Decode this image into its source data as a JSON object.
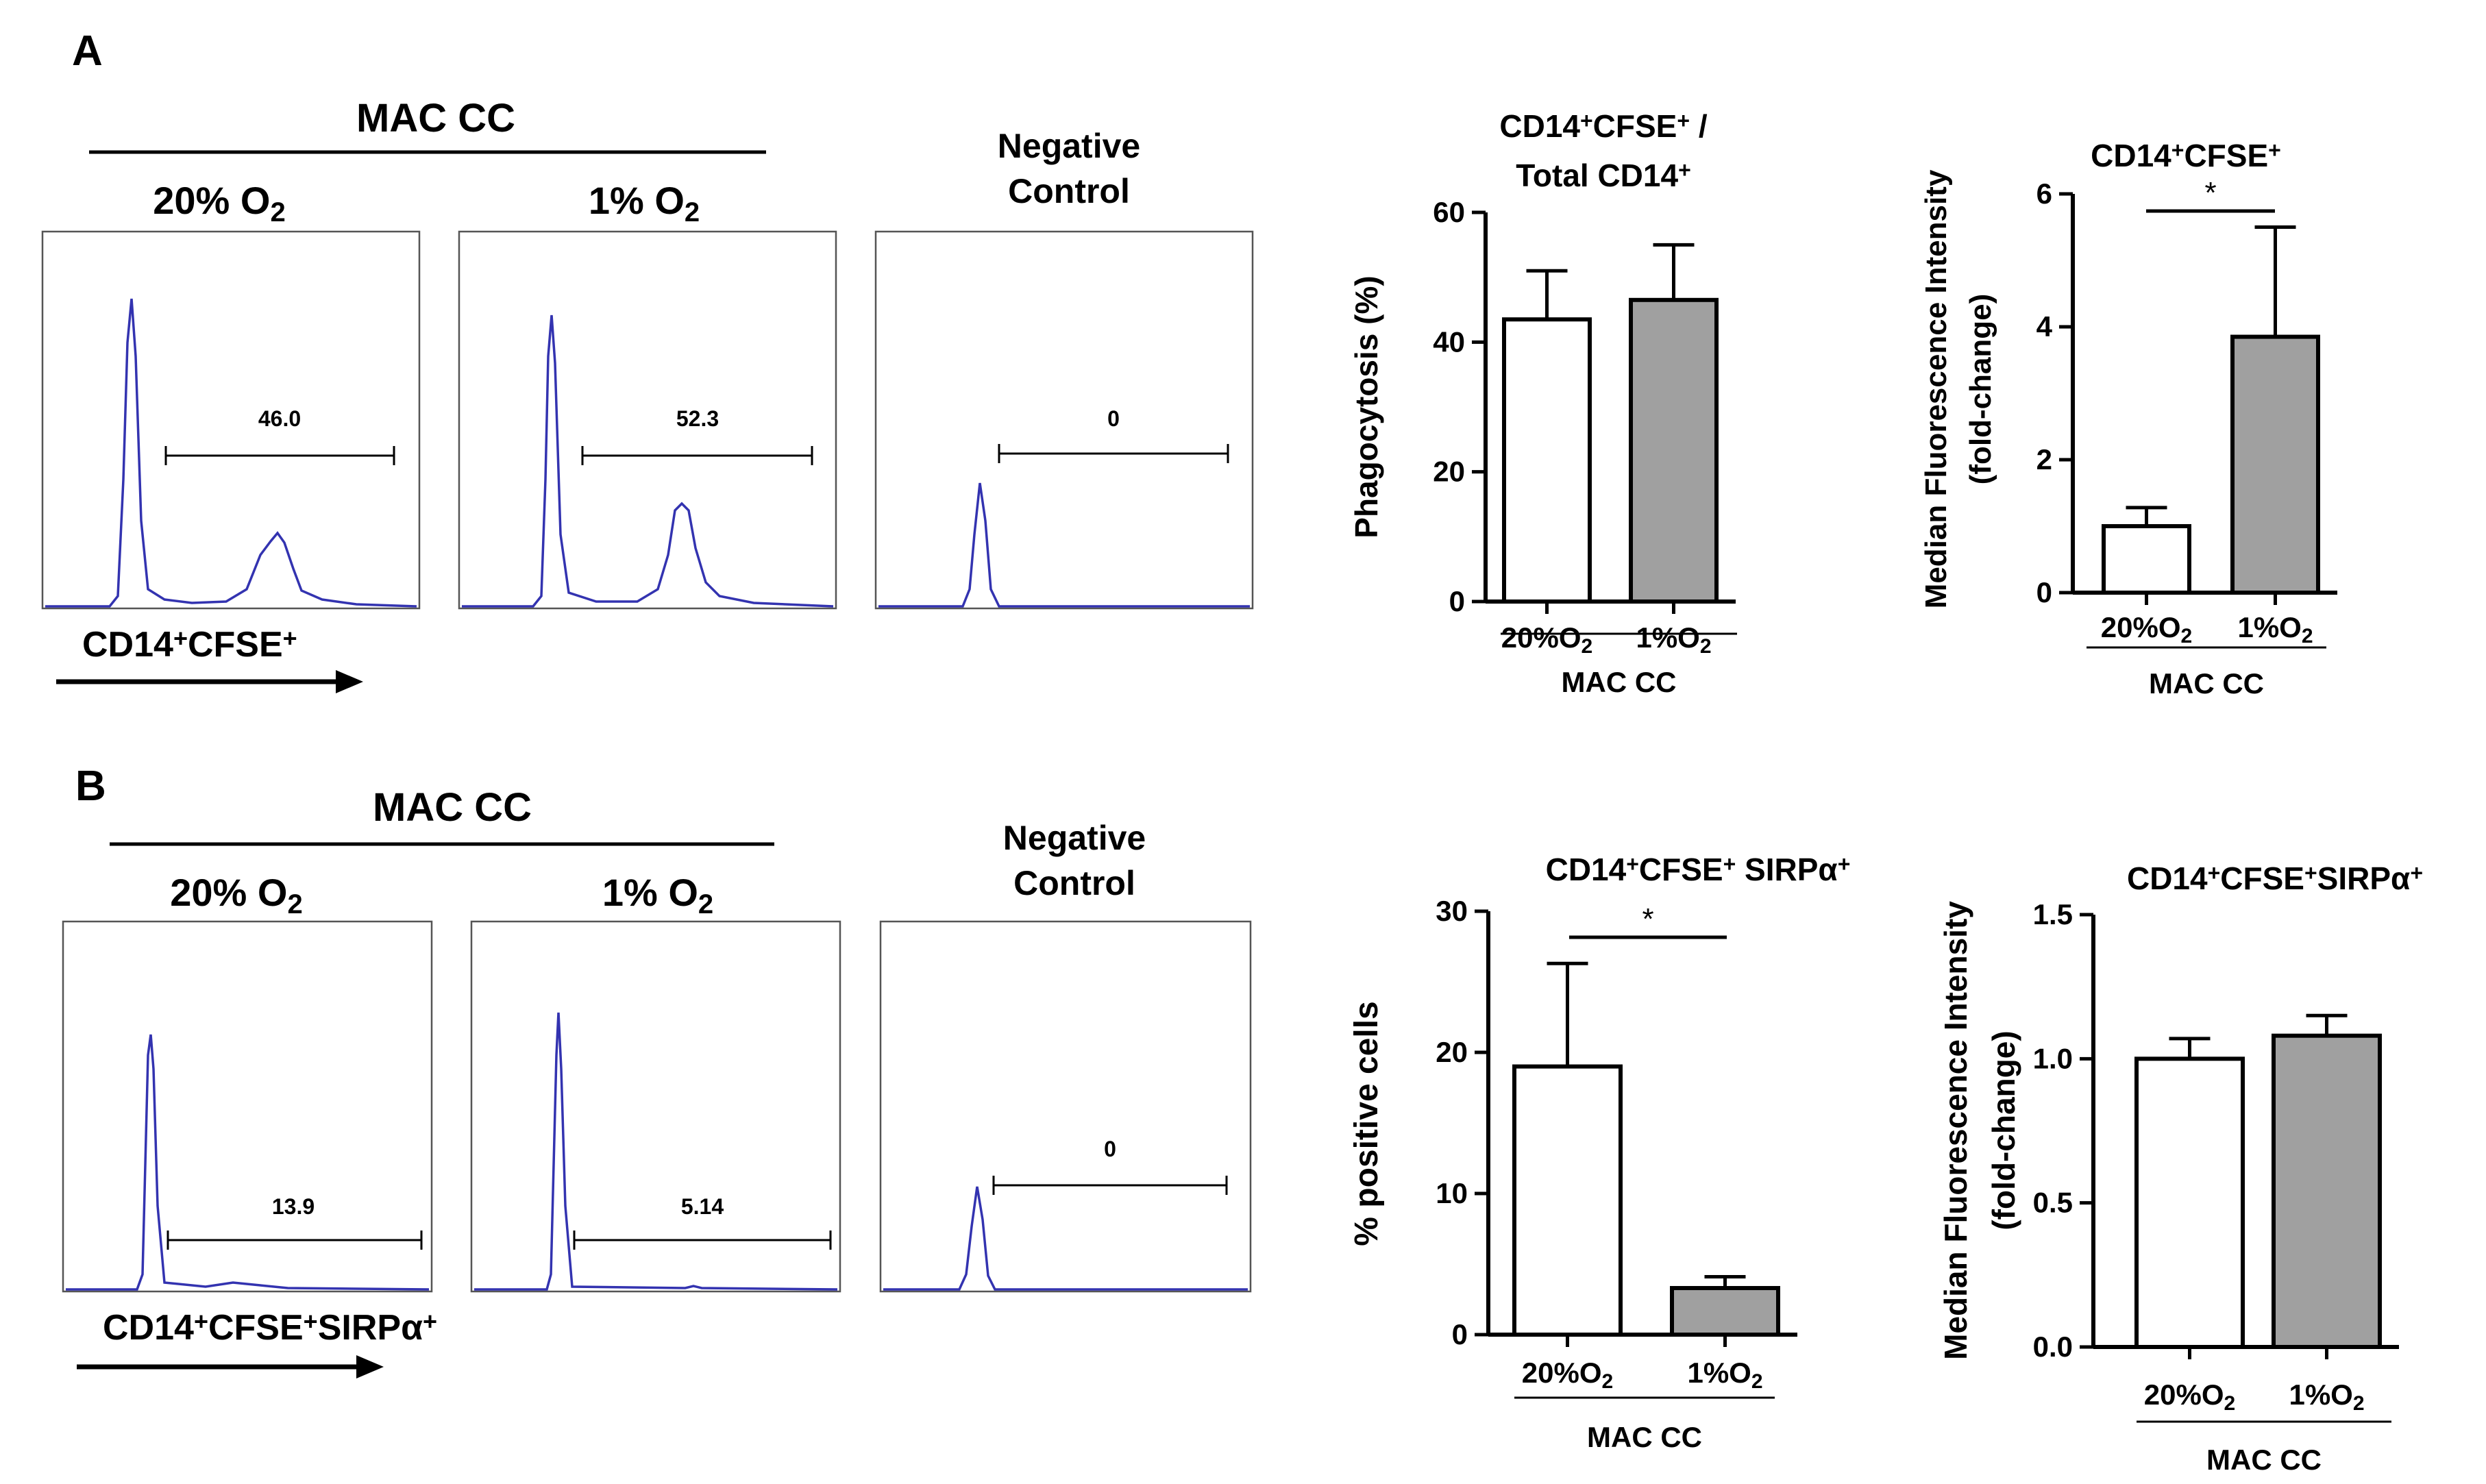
{
  "panels": {
    "A": {
      "label": "A",
      "group_label": "MAC CC",
      "conditions": [
        {
          "base": "20% O",
          "sub": "2"
        },
        {
          "base": "1% O",
          "sub": "2"
        }
      ],
      "negative_control": [
        "Negative",
        "Control"
      ],
      "gate_values": [
        "46.0",
        "52.3",
        "0"
      ],
      "axis_label": {
        "base": "CD14",
        "sup1": "+",
        "mid": "CFSE",
        "sup2": "+"
      }
    },
    "B": {
      "label": "B",
      "group_label": "MAC CC",
      "conditions": [
        {
          "base": "20% O",
          "sub": "2"
        },
        {
          "base": "1% O",
          "sub": "2"
        }
      ],
      "negative_control": [
        "Negative",
        "Control"
      ],
      "gate_values": [
        "13.9",
        "5.14",
        "0"
      ],
      "axis_label": {
        "base": "CD14",
        "sup1": "+",
        "mid": "CFSE",
        "sup2": "+",
        "end": "SIRPα",
        "sup3": "+"
      }
    }
  },
  "chart_data": [
    {
      "id": "A-phago",
      "type": "bar",
      "title_line1": {
        "base": "CD14",
        "sup1": "+",
        "mid": "CFSE",
        "sup2": "+",
        "end": " /"
      },
      "title_line2": {
        "base": "Total CD14",
        "sup1": "+"
      },
      "ylabel": "Phagocytosis (%)",
      "ylim": [
        0,
        60
      ],
      "yticks": [
        "0",
        "20",
        "40",
        "60"
      ],
      "categories": [
        {
          "base": "20%O",
          "sub": "2"
        },
        {
          "base": "1%O",
          "sub": "2"
        }
      ],
      "values": [
        43.5,
        46.5
      ],
      "errors": [
        7.5,
        8.5
      ],
      "colors": [
        "#ffffff",
        "#a0a0a0"
      ],
      "group_label": "MAC CC",
      "significance": ""
    },
    {
      "id": "A-mfi",
      "type": "bar",
      "title_line1": {
        "base": "CD14",
        "sup1": "+",
        "mid": "CFSE",
        "sup2": "+",
        "end": ""
      },
      "ylabel_line1": "Median Fluorescence Intensity",
      "ylabel_line2": "(fold-change)",
      "ylim": [
        0,
        6
      ],
      "yticks": [
        "0",
        "2",
        "4",
        "6"
      ],
      "categories": [
        {
          "base": "20%O",
          "sub": "2"
        },
        {
          "base": "1%O",
          "sub": "2"
        }
      ],
      "values": [
        1.0,
        3.85
      ],
      "errors": [
        0.28,
        1.65
      ],
      "colors": [
        "#ffffff",
        "#a0a0a0"
      ],
      "group_label": "MAC CC",
      "significance": "*"
    },
    {
      "id": "B-pos",
      "type": "bar",
      "title_line1": {
        "base": "CD14",
        "sup1": "+",
        "mid": "CFSE",
        "sup2": "+",
        "end": " SIRPα",
        "sup3": "+"
      },
      "ylabel": "% positive cells",
      "ylim": [
        0,
        30
      ],
      "yticks": [
        "0",
        "10",
        "20",
        "30"
      ],
      "categories": [
        {
          "base": "20%O",
          "sub": "2"
        },
        {
          "base": "1%O",
          "sub": "2"
        }
      ],
      "values": [
        19.0,
        3.3
      ],
      "errors": [
        7.3,
        0.8
      ],
      "colors": [
        "#ffffff",
        "#a0a0a0"
      ],
      "group_label": "MAC CC",
      "significance": "*"
    },
    {
      "id": "B-mfi",
      "type": "bar",
      "title_line1": {
        "base": "CD14",
        "sup1": "+",
        "mid": "CFSE",
        "sup2": "+",
        "end": "SIRPα",
        "sup3": "+"
      },
      "ylabel_line1": "Median Fluorescence Intensity",
      "ylabel_line2": "(fold-change)",
      "ylim": [
        0,
        1.5
      ],
      "yticks": [
        "0.0",
        "0.5",
        "1.0",
        "1.5"
      ],
      "categories": [
        {
          "base": "20%O",
          "sub": "2"
        },
        {
          "base": "1%O",
          "sub": "2"
        }
      ],
      "values": [
        1.0,
        1.08
      ],
      "errors": [
        0.07,
        0.07
      ],
      "colors": [
        "#ffffff",
        "#a0a0a0"
      ],
      "group_label": "MAC CC",
      "significance": ""
    }
  ]
}
